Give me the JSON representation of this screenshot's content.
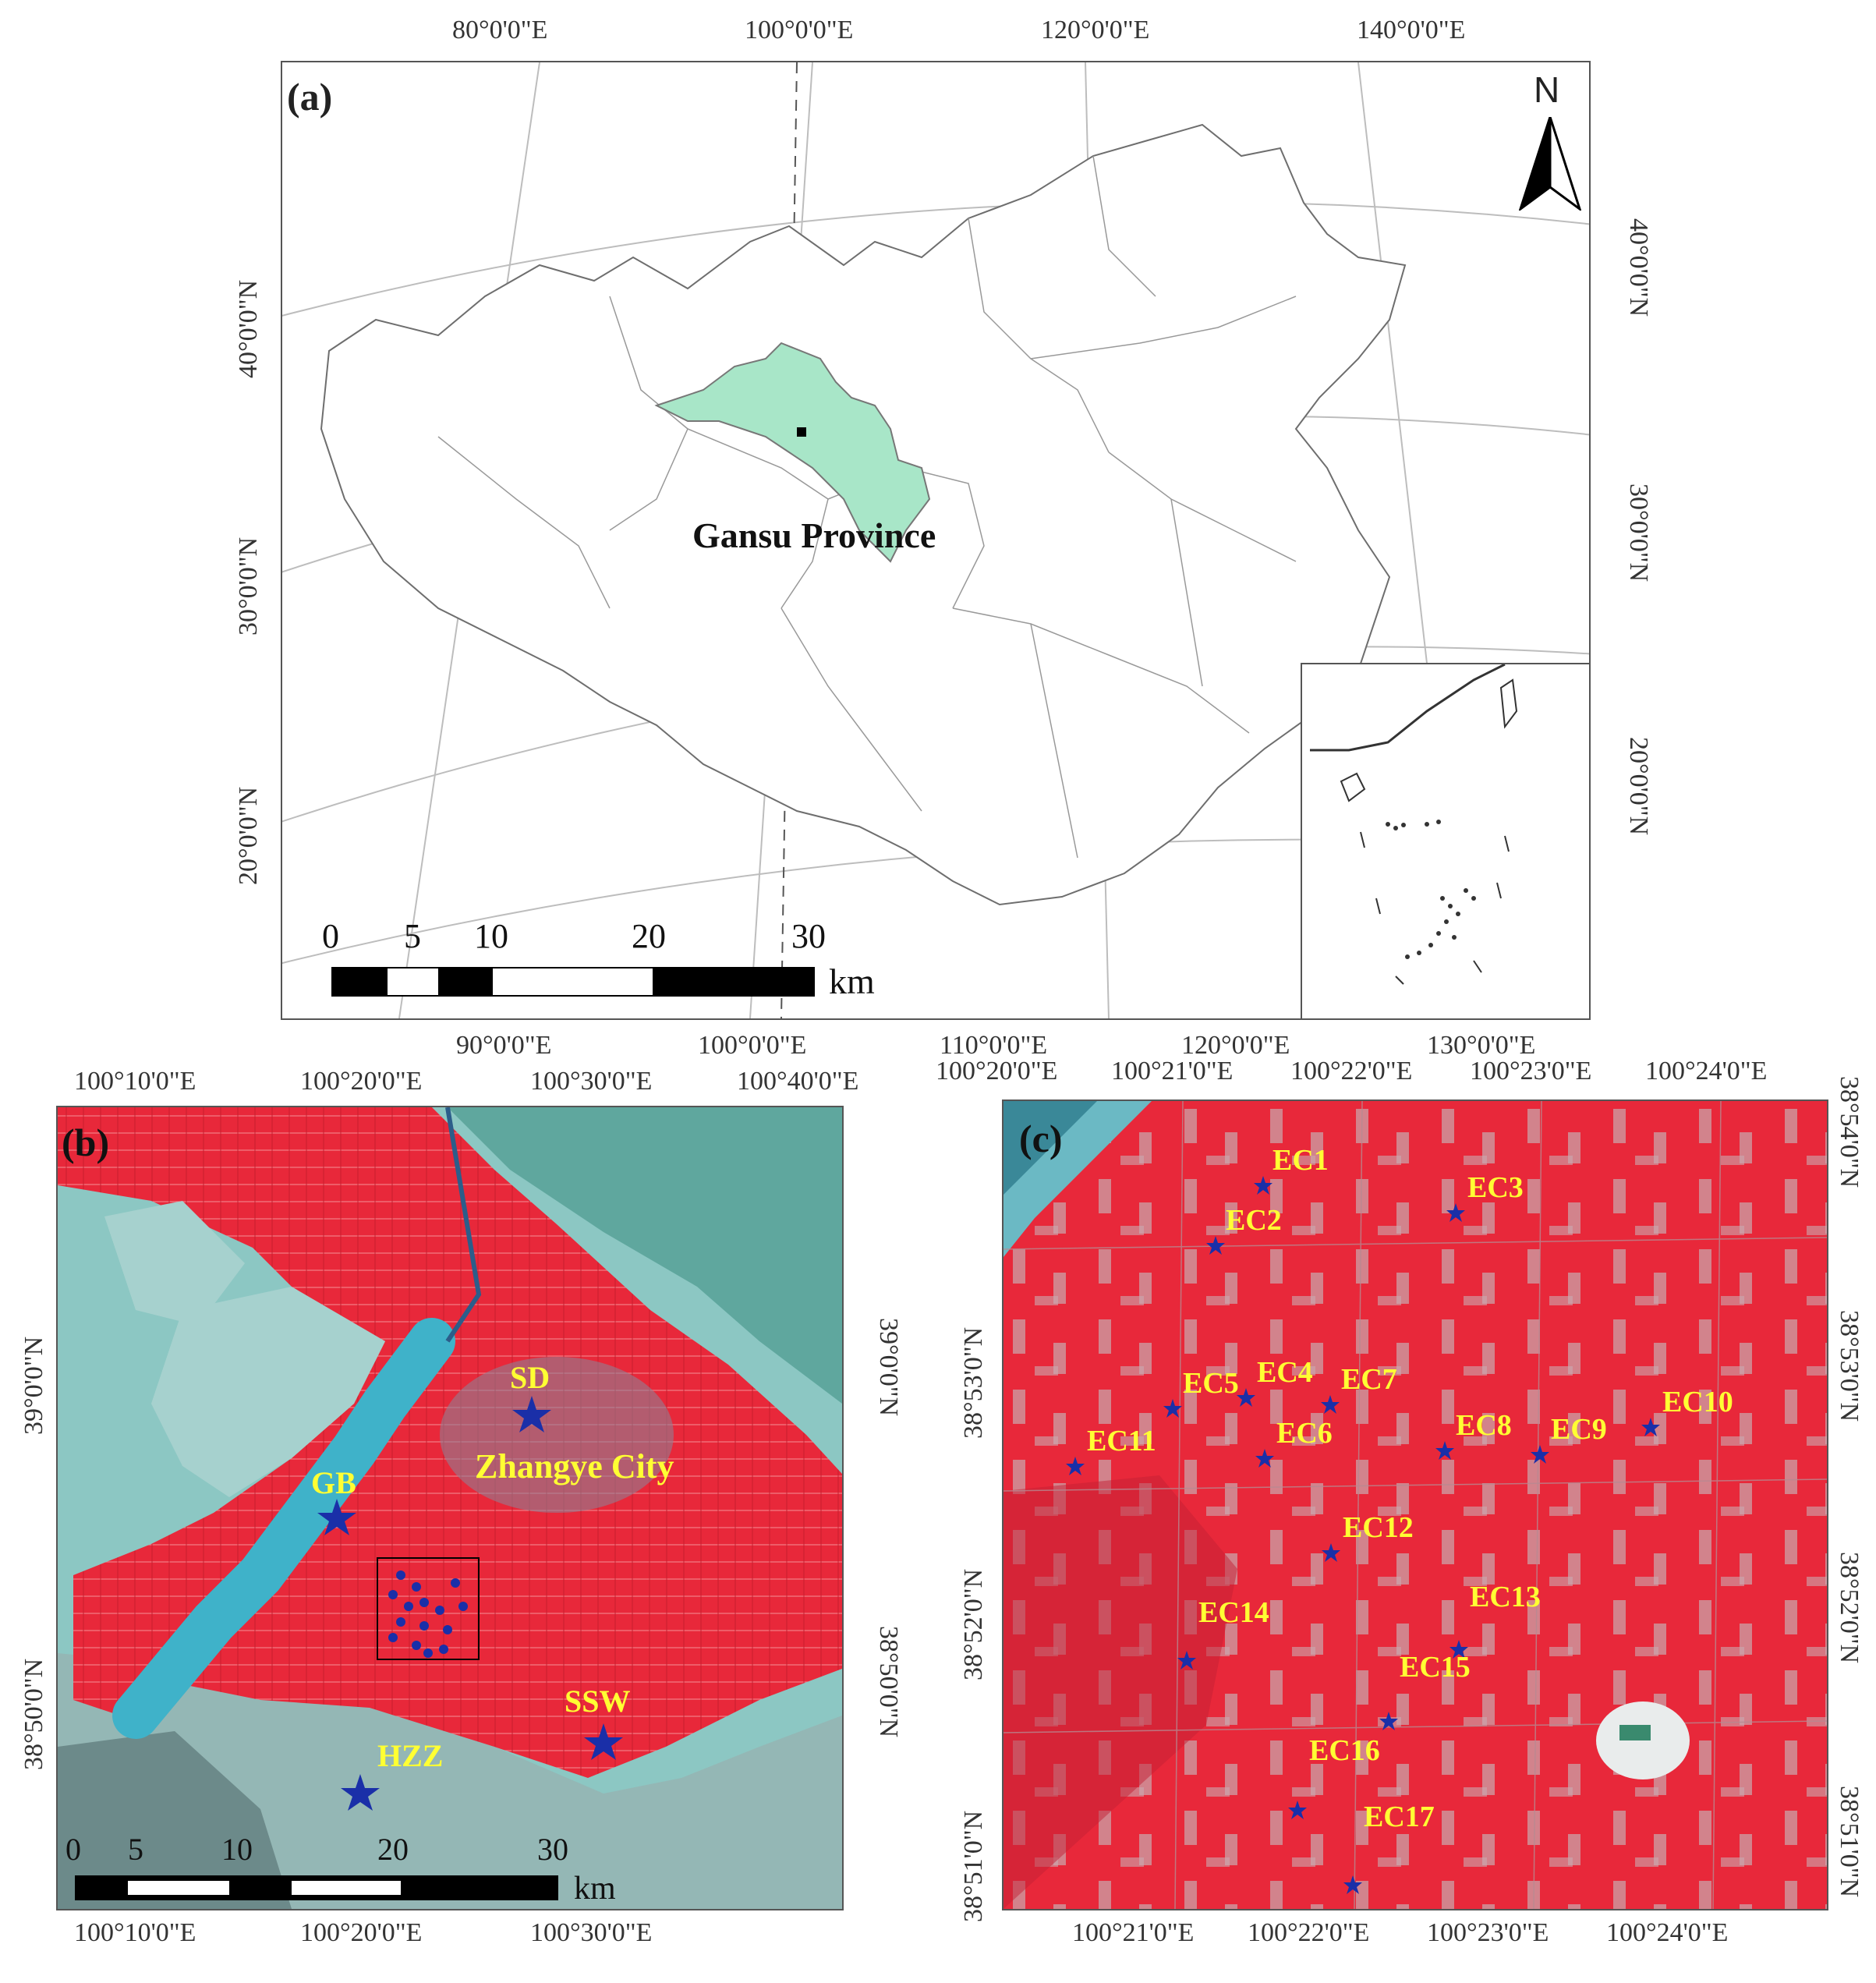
{
  "panel_a": {
    "tag": "(a)",
    "top_lon_labels": [
      "80°0'0\"E",
      "100°0'0\"E",
      "120°0'0\"E",
      "140°0'0\"E"
    ],
    "bottom_lon_labels": [
      "90°0'0\"E",
      "100°0'0\"E",
      "110°0'0\"E",
      "120°0'0\"E",
      "130°0'0\"E"
    ],
    "left_lat_labels": [
      "40°0'0\"N",
      "30°0'0\"N",
      "20°0'0\"N"
    ],
    "right_lat_labels": [
      "40°0'0\"N",
      "30°0'0\"N",
      "20°0'0\"N"
    ],
    "north_label": "N",
    "province_label": "Gansu Province",
    "province_color": "#a8e6c8",
    "scale_ticks": [
      "0",
      "5",
      "10",
      "20",
      "30"
    ],
    "scale_unit": "km"
  },
  "panel_b": {
    "tag": "(b)",
    "top_lon_labels": [
      "100°10'0\"E",
      "100°20'0\"E",
      "100°30'0\"E",
      "100°40'0\"E"
    ],
    "bottom_lon_labels": [
      "100°10'0\"E",
      "100°20'0\"E",
      "100°30'0\"E"
    ],
    "left_lat_labels": [
      "39°0'0\"N",
      "38°50'0\"N"
    ],
    "right_lat_labels": [
      "39°0'0\"N",
      "38°50'0\"N"
    ],
    "sites": [
      "SD",
      "GB",
      "SSW",
      "HZZ"
    ],
    "city_label": "Zhangye City",
    "scale_ticks": [
      "0",
      "5",
      "10",
      "20",
      "30"
    ],
    "scale_unit": "km"
  },
  "panel_c": {
    "tag": "(c)",
    "top_lon_labels": [
      "100°20'0\"E",
      "100°21'0\"E",
      "100°22'0\"E",
      "100°23'0\"E",
      "100°24'0\"E"
    ],
    "bottom_lon_labels": [
      "100°21'0\"E",
      "100°22'0\"E",
      "100°23'0\"E",
      "100°24'0\"E"
    ],
    "left_lat_labels": [
      "38°53'0\"N",
      "38°52'0\"N",
      "38°51'0\"N"
    ],
    "right_lat_labels": [
      "38°54'0\"N",
      "38°53'0\"N",
      "38°52'0\"N",
      "38°51'0\"N"
    ],
    "stations": [
      "EC1",
      "EC2",
      "EC3",
      "EC4",
      "EC5",
      "EC6",
      "EC7",
      "EC8",
      "EC9",
      "EC10",
      "EC11",
      "EC12",
      "EC13",
      "EC14",
      "EC15",
      "EC16",
      "EC17"
    ]
  },
  "colors": {
    "vegetation_red": "#e8283a",
    "desert_cyan": "#7fc4c4",
    "label_yellow": "#ffff33",
    "star_blue": "#1a2fa8"
  }
}
